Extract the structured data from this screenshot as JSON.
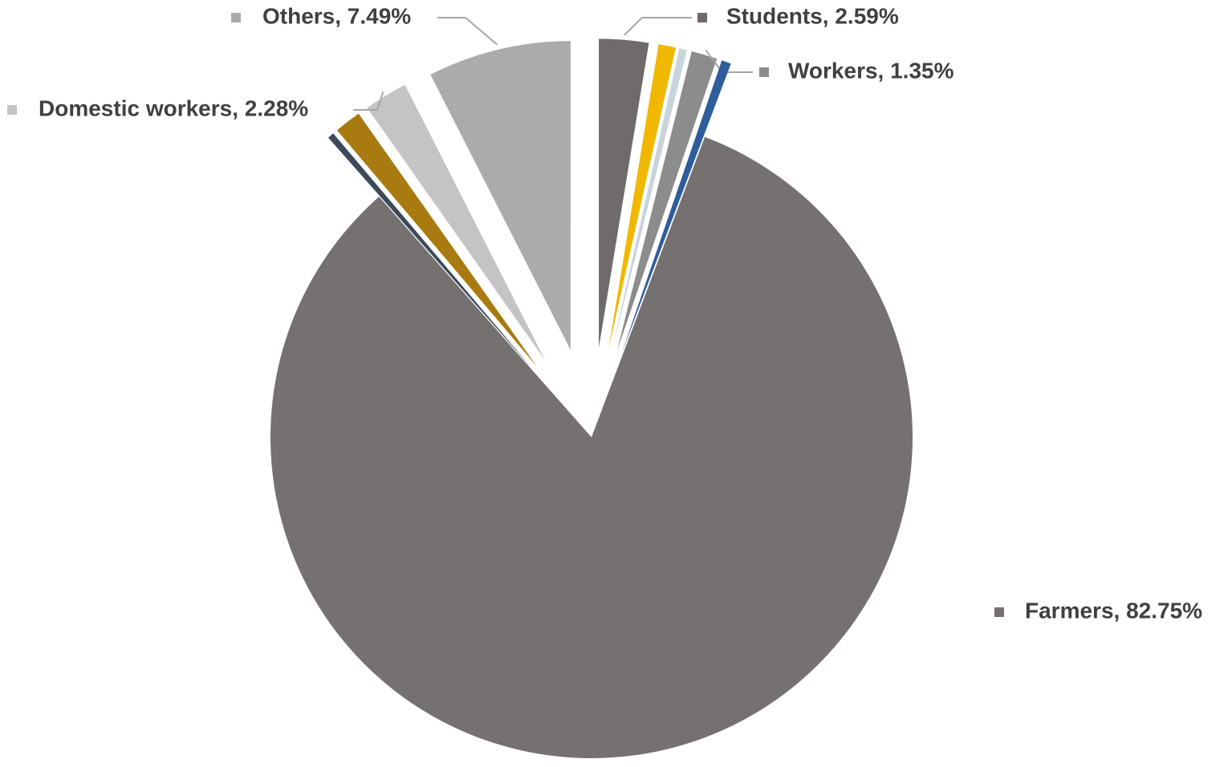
{
  "chart_data": {
    "type": "pie",
    "values": [
      2.59,
      0.9,
      0.4,
      1.35,
      0.5,
      82.75,
      0.34,
      1.4,
      2.28,
      7.49
    ],
    "value_labels": [
      "Students, 2.59%",
      null,
      null,
      "Workers, 1.35%",
      null,
      "Farmers, 82.75%",
      null,
      null,
      "Domestic workers, 2.28%",
      "Others, 7.49%"
    ],
    "colors": [
      "#6f6b6b",
      "#f0b800",
      "#c9d3dc",
      "#8c8c8c",
      "#2e5d9c",
      "#757170",
      "#3d4a5a",
      "#a87a10",
      "#c4c4c4",
      "#ababab"
    ]
  }
}
